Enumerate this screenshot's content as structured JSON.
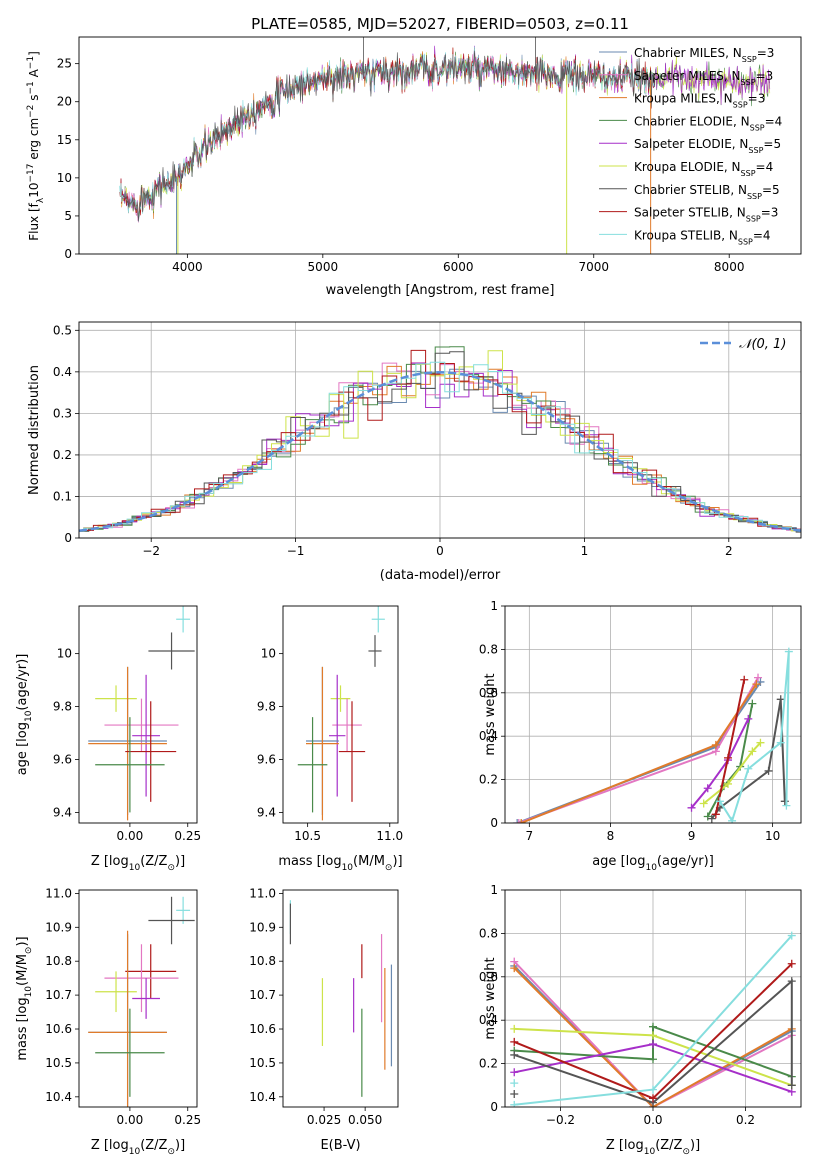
{
  "title": "PLATE=0585, MJD=52027, FIBERID=0503, z=0.11",
  "colors": {
    "Chabrier MILES": "#6a8ab0",
    "Salpeter MILES": "#e377c2",
    "Kroupa MILES": "#e07b2a",
    "Chabrier ELODIE": "#4a8a4a",
    "Salpeter ELODIE": "#a62fc9",
    "Kroupa ELODIE": "#cde34a",
    "Chabrier STELIB": "#555555",
    "Salpeter STELIB": "#b01a1a",
    "Kroupa STELIB": "#86dede",
    "gaussian": "#5b8fd9",
    "grid": "#b0b0b0"
  },
  "legend1": [
    {
      "model": "Chabrier MILES",
      "label": "Chabrier MILES, N",
      "sub": "SSP",
      "tail": "=3"
    },
    {
      "model": "Salpeter MILES",
      "label": "Salpeter MILES, N",
      "sub": "SSP",
      "tail": "=3"
    },
    {
      "model": "Kroupa MILES",
      "label": "Kroupa MILES, N",
      "sub": "SSP",
      "tail": "=3"
    },
    {
      "model": "Chabrier ELODIE",
      "label": "Chabrier ELODIE, N",
      "sub": "SSP",
      "tail": "=4"
    },
    {
      "model": "Salpeter ELODIE",
      "label": "Salpeter ELODIE, N",
      "sub": "SSP",
      "tail": "=5"
    },
    {
      "model": "Kroupa ELODIE",
      "label": "Kroupa ELODIE, N",
      "sub": "SSP",
      "tail": "=4"
    },
    {
      "model": "Chabrier STELIB",
      "label": "Chabrier STELIB, N",
      "sub": "SSP",
      "tail": "=5"
    },
    {
      "model": "Salpeter STELIB",
      "label": "Salpeter STELIB, N",
      "sub": "SSP",
      "tail": "=3"
    },
    {
      "model": "Kroupa STELIB",
      "label": "Kroupa STELIB, N",
      "sub": "SSP",
      "tail": "=4"
    }
  ],
  "legend2": {
    "label": "𝒩(0, 1)"
  },
  "chart_data": [
    {
      "id": "spectrum",
      "type": "line",
      "xlabel": "wavelength [Angstrom, rest frame]",
      "ylabel": "Flux [f",
      "ylabel_sub": "λ",
      "ylabel_tail": "10",
      "ylabel_sup": "−17",
      "ylabel_tail2": " erg cm",
      "ylabel_sup2": "−2",
      "ylabel_tail3": " s",
      "ylabel_sup3": "−1",
      "ylabel_tail4": " A",
      "ylabel_sup4": "−1",
      "ylabel_tail5": "]",
      "xlim": [
        3200,
        8530
      ],
      "ylim": [
        0,
        28.5
      ],
      "xticks": [
        4000,
        5000,
        6000,
        7000,
        8000
      ],
      "yticks": [
        0,
        5,
        10,
        15,
        20,
        25
      ],
      "continuum": {
        "x": [
          3500,
          3600,
          3700,
          3800,
          3900,
          4000,
          4100,
          4200,
          4300,
          4400,
          4500,
          4600,
          4700,
          4800,
          4900,
          5000,
          5200,
          5400,
          5600,
          5800,
          6000,
          6200,
          6400,
          6600,
          6800,
          7000,
          7200,
          7400,
          7600,
          7800,
          8000,
          8200,
          8300
        ],
        "y": [
          7.5,
          6.5,
          7.5,
          9.0,
          9.5,
          11.5,
          13.5,
          15.0,
          16.5,
          18.0,
          19.0,
          20.0,
          21.0,
          22.0,
          22.5,
          23.0,
          23.5,
          23.8,
          24.0,
          24.3,
          24.5,
          24.0,
          23.8,
          23.5,
          23.5,
          23.3,
          23.0,
          23.0,
          23.2,
          23.0,
          22.8,
          22.5,
          22.3
        ]
      },
      "dropouts": [
        {
          "model": "Chabrier MILES",
          "x": 3920
        },
        {
          "model": "Kroupa ELODIE",
          "x": 3930
        },
        {
          "model": "Kroupa ELODIE",
          "x": 6800
        },
        {
          "model": "Kroupa MILES",
          "x": 7420
        }
      ]
    },
    {
      "id": "residuals",
      "type": "histogram",
      "xlabel": "(data-model)/error",
      "ylabel": "Normed distribution",
      "xlim": [
        -2.5,
        2.5
      ],
      "ylim": [
        0,
        0.52
      ],
      "xticks": [
        -2,
        -1,
        0,
        1,
        2
      ],
      "yticks": [
        0.0,
        0.1,
        0.2,
        0.3,
        0.4,
        0.5
      ],
      "bin_width": 0.1
    },
    {
      "id": "age_vs_Z",
      "type": "errorbar",
      "xlabel": "Z [log",
      "xlabel_sub": "10",
      "xlabel_tail": "(Z/Z",
      "xlabel_sub2": "⊙",
      "xlabel_tail2": ")]",
      "ylabel": "age  [log",
      "ylabel_sub": "10",
      "ylabel_tail": "(age/yr)]",
      "xlim": [
        -0.22,
        0.29
      ],
      "ylim": [
        9.36,
        10.18
      ],
      "xticks": [
        0.0,
        0.25
      ],
      "xticklabels": [
        "0.00",
        "0.25"
      ],
      "yticks": [
        9.4,
        9.6,
        9.8,
        10.0
      ],
      "points": [
        {
          "model": "Kroupa STELIB",
          "x": 0.23,
          "y": 10.13,
          "xerr": 0.03,
          "yerr": 0.05
        },
        {
          "model": "Chabrier STELIB",
          "x": 0.18,
          "y": 10.01,
          "xerr": 0.1,
          "yerr": 0.07
        },
        {
          "model": "Kroupa ELODIE",
          "x": -0.06,
          "y": 9.83,
          "xerr": 0.09,
          "yerr": 0.05
        },
        {
          "model": "Salpeter MILES",
          "x": 0.05,
          "y": 9.73,
          "xerr": 0.16,
          "yerr": 0.1
        },
        {
          "model": "Salpeter ELODIE",
          "x": 0.07,
          "y": 9.69,
          "xerr": 0.06,
          "yerr": 0.23
        },
        {
          "model": "Chabrier MILES",
          "x": -0.01,
          "y": 9.67,
          "xerr": 0.17,
          "yerr": 0.28
        },
        {
          "model": "Kroupa MILES",
          "x": -0.01,
          "y": 9.66,
          "xerr": 0.17,
          "yerr": 0.29
        },
        {
          "model": "Salpeter STELIB",
          "x": 0.09,
          "y": 9.63,
          "xerr": 0.11,
          "yerr": 0.19
        },
        {
          "model": "Chabrier ELODIE",
          "x": 0.0,
          "y": 9.58,
          "xerr": 0.15,
          "yerr": 0.18
        }
      ]
    },
    {
      "id": "age_vs_mass",
      "type": "errorbar",
      "xlabel": "mass [log",
      "xlabel_sub": "10",
      "xlabel_tail": "(M/M",
      "xlabel_sub2": "⊙",
      "xlabel_tail2": ")]",
      "ylabel": "",
      "xlim": [
        10.35,
        11.05
      ],
      "ylim": [
        9.36,
        10.18
      ],
      "xticks": [
        10.5,
        11.0
      ],
      "xticklabels": [
        "10.5",
        "11.0"
      ],
      "yticks": [
        9.4,
        9.6,
        9.8,
        10.0
      ],
      "points": [
        {
          "model": "Kroupa STELIB",
          "x": 10.93,
          "y": 10.13,
          "xerr": 0.04,
          "yerr": 0.05
        },
        {
          "model": "Chabrier STELIB",
          "x": 10.91,
          "y": 10.01,
          "xerr": 0.04,
          "yerr": 0.06
        },
        {
          "model": "Kroupa ELODIE",
          "x": 10.7,
          "y": 9.83,
          "xerr": 0.06,
          "yerr": 0.05
        },
        {
          "model": "Salpeter MILES",
          "x": 10.74,
          "y": 9.73,
          "xerr": 0.09,
          "yerr": 0.1
        },
        {
          "model": "Salpeter ELODIE",
          "x": 10.68,
          "y": 9.69,
          "xerr": 0.05,
          "yerr": 0.23
        },
        {
          "model": "Chabrier MILES",
          "x": 10.59,
          "y": 9.67,
          "xerr": 0.1,
          "yerr": 0.28
        },
        {
          "model": "Kroupa MILES",
          "x": 10.59,
          "y": 9.66,
          "xerr": 0.1,
          "yerr": 0.29
        },
        {
          "model": "Salpeter STELIB",
          "x": 10.77,
          "y": 9.63,
          "xerr": 0.08,
          "yerr": 0.19
        },
        {
          "model": "Chabrier ELODIE",
          "x": 10.53,
          "y": 9.58,
          "xerr": 0.09,
          "yerr": 0.18
        }
      ]
    },
    {
      "id": "mass_vs_Z",
      "type": "errorbar",
      "xlabel": "Z [log",
      "xlabel_sub": "10",
      "xlabel_tail": "(Z/Z",
      "xlabel_sub2": "⊙",
      "xlabel_tail2": ")]",
      "ylabel": "mass [log",
      "ylabel_sub": "10",
      "ylabel_tail": "(M/M",
      "ylabel_sub2": "⊙",
      "ylabel_tail2": ")]",
      "xlim": [
        -0.22,
        0.29
      ],
      "ylim": [
        10.37,
        11.01
      ],
      "xticks": [
        0.0,
        0.25
      ],
      "xticklabels": [
        "0.00",
        "0.25"
      ],
      "yticks": [
        10.4,
        10.5,
        10.6,
        10.7,
        10.8,
        10.9,
        11.0
      ],
      "yticklabels": [
        "10.4",
        "10.5",
        "10.6",
        "10.7",
        "10.8",
        "10.9",
        "11.0"
      ],
      "points": [
        {
          "model": "Kroupa STELIB",
          "x": 0.23,
          "y": 10.95,
          "xerr": 0.03,
          "yerr": 0.04
        },
        {
          "model": "Chabrier STELIB",
          "x": 0.18,
          "y": 10.92,
          "xerr": 0.1,
          "yerr": 0.07
        },
        {
          "model": "Salpeter STELIB",
          "x": 0.09,
          "y": 10.77,
          "xerr": 0.11,
          "yerr": 0.08
        },
        {
          "model": "Salpeter MILES",
          "x": 0.05,
          "y": 10.75,
          "xerr": 0.16,
          "yerr": 0.1
        },
        {
          "model": "Kroupa ELODIE",
          "x": -0.06,
          "y": 10.71,
          "xerr": 0.09,
          "yerr": 0.06
        },
        {
          "model": "Salpeter ELODIE",
          "x": 0.07,
          "y": 10.69,
          "xerr": 0.06,
          "yerr": 0.06
        },
        {
          "model": "Chabrier MILES",
          "x": -0.01,
          "y": 10.59,
          "xerr": 0.17,
          "yerr": 0.29
        },
        {
          "model": "Kroupa MILES",
          "x": -0.01,
          "y": 10.59,
          "xerr": 0.17,
          "yerr": 0.3
        },
        {
          "model": "Chabrier ELODIE",
          "x": 0.0,
          "y": 10.53,
          "xerr": 0.15,
          "yerr": 0.13
        }
      ]
    },
    {
      "id": "mass_vs_EBV",
      "type": "errorbar",
      "xlabel": "E(B-V)",
      "ylabel": "",
      "xlim": [
        0.0,
        0.07
      ],
      "ylim": [
        10.37,
        11.01
      ],
      "xticks": [
        0.025,
        0.05
      ],
      "xticklabels": [
        "0.025",
        "0.050"
      ],
      "yticks": [
        10.4,
        10.5,
        10.6,
        10.7,
        10.8,
        10.9,
        11.0
      ],
      "yticklabels": [
        "10.4",
        "10.5",
        "10.6",
        "10.7",
        "10.8",
        "10.9",
        "11.0"
      ],
      "points": [
        {
          "model": "Kroupa STELIB",
          "x": 0.0045,
          "y": 10.93,
          "xerr": 0.0,
          "yerr": 0.05
        },
        {
          "model": "Chabrier STELIB",
          "x": 0.0045,
          "y": 10.91,
          "xerr": 0.0,
          "yerr": 0.06
        },
        {
          "model": "Kroupa ELODIE",
          "x": 0.024,
          "y": 10.65,
          "xerr": 0.0,
          "yerr": 0.1
        },
        {
          "model": "Salpeter ELODIE",
          "x": 0.043,
          "y": 10.67,
          "xerr": 0.0,
          "yerr": 0.08
        },
        {
          "model": "Chabrier ELODIE",
          "x": 0.048,
          "y": 10.53,
          "xerr": 0.0,
          "yerr": 0.13
        },
        {
          "model": "Salpeter STELIB",
          "x": 0.048,
          "y": 10.8,
          "xerr": 0.0,
          "yerr": 0.05
        },
        {
          "model": "Salpeter MILES",
          "x": 0.06,
          "y": 10.75,
          "xerr": 0.0,
          "yerr": 0.13
        },
        {
          "model": "Kroupa MILES",
          "x": 0.062,
          "y": 10.63,
          "xerr": 0.0,
          "yerr": 0.15
        },
        {
          "model": "Chabrier MILES",
          "x": 0.066,
          "y": 10.64,
          "xerr": 0.0,
          "yerr": 0.15
        }
      ]
    },
    {
      "id": "weight_vs_age",
      "type": "line",
      "xlabel": "age  [log",
      "xlabel_sub": "10",
      "xlabel_tail": "(age/yr)]",
      "ylabel": "mass weight",
      "xlim": [
        6.7,
        10.35
      ],
      "ylim": [
        0,
        1.0
      ],
      "xticks": [
        7,
        8,
        9,
        10
      ],
      "yticks": [
        0.0,
        0.2,
        0.4,
        0.6,
        0.8,
        1.0
      ],
      "series": [
        {
          "model": "Chabrier MILES",
          "x": [
            6.85,
            9.3,
            9.85
          ],
          "y": [
            0.0,
            0.35,
            0.65
          ]
        },
        {
          "model": "Salpeter MILES",
          "x": [
            6.87,
            9.3,
            9.82
          ],
          "y": [
            0.0,
            0.33,
            0.67
          ]
        },
        {
          "model": "Kroupa MILES",
          "x": [
            6.9,
            9.3,
            9.8
          ],
          "y": [
            0.0,
            0.36,
            0.64
          ]
        },
        {
          "model": "Chabrier ELODIE",
          "x": [
            9.2,
            9.4,
            9.6,
            9.75
          ],
          "y": [
            0.03,
            0.17,
            0.26,
            0.55
          ]
        },
        {
          "model": "Salpeter ELODIE",
          "x": [
            9.0,
            9.2,
            9.45,
            9.7
          ],
          "y": [
            0.07,
            0.16,
            0.29,
            0.48
          ]
        },
        {
          "model": "Kroupa ELODIE",
          "x": [
            9.15,
            9.45,
            9.75,
            9.85
          ],
          "y": [
            0.09,
            0.18,
            0.33,
            0.37
          ]
        },
        {
          "model": "Chabrier STELIB",
          "x": [
            9.25,
            9.35,
            9.95,
            10.1,
            10.15
          ],
          "y": [
            0.02,
            0.07,
            0.24,
            0.57,
            0.1
          ]
        },
        {
          "model": "Salpeter STELIB",
          "x": [
            9.3,
            9.45,
            9.65
          ],
          "y": [
            0.04,
            0.3,
            0.66
          ]
        },
        {
          "model": "Kroupa STELIB",
          "x": [
            9.35,
            9.5,
            9.7,
            10.1,
            10.2,
            10.17
          ],
          "y": [
            0.1,
            0.01,
            0.25,
            0.37,
            0.79,
            0.08
          ]
        }
      ]
    },
    {
      "id": "weight_vs_Z",
      "type": "line",
      "xlabel": "Z [log",
      "xlabel_sub": "10",
      "xlabel_tail": "(Z/Z",
      "xlabel_sub2": "⊙",
      "xlabel_tail2": ")]",
      "ylabel": "mass weight",
      "xlim": [
        -0.32,
        0.32
      ],
      "ylim": [
        0,
        1.0
      ],
      "xticks": [
        -0.2,
        0.0,
        0.2
      ],
      "xticklabels": [
        "−0.2",
        "0.0",
        "0.2"
      ],
      "yticks": [
        0.0,
        0.2,
        0.4,
        0.6,
        0.8,
        1.0
      ],
      "series": [
        {
          "model": "Chabrier MILES",
          "x": [
            -0.3,
            0.0,
            0.3
          ],
          "y": [
            0.65,
            0.0,
            0.35
          ]
        },
        {
          "model": "Salpeter MILES",
          "x": [
            -0.3,
            0.0,
            0.3
          ],
          "y": [
            0.67,
            0.0,
            0.33
          ]
        },
        {
          "model": "Kroupa MILES",
          "x": [
            -0.3,
            0.0,
            0.3
          ],
          "y": [
            0.64,
            0.0,
            0.36
          ]
        },
        {
          "model": "Chabrier ELODIE",
          "x": [
            -0.3,
            0.0,
            0.0,
            0.3
          ],
          "y": [
            0.26,
            0.22,
            0.37,
            0.14
          ]
        },
        {
          "model": "Salpeter ELODIE",
          "x": [
            -0.3,
            0.0,
            0.3
          ],
          "y": [
            0.16,
            0.29,
            0.07
          ]
        },
        {
          "model": "Kroupa ELODIE",
          "x": [
            -0.3,
            0.0,
            0.3
          ],
          "y": [
            0.36,
            0.33,
            0.1
          ]
        },
        {
          "model": "Chabrier STELIB",
          "x": [
            -0.3,
            0.0,
            0.3,
            0.3
          ],
          "y": [
            0.24,
            0.02,
            0.58,
            0.1
          ]
        },
        {
          "model": "Salpeter STELIB",
          "x": [
            -0.3,
            0.0,
            0.3
          ],
          "y": [
            0.3,
            0.04,
            0.66
          ]
        },
        {
          "model": "Kroupa STELIB",
          "x": [
            -0.3,
            0.0,
            0.3
          ],
          "y": [
            0.01,
            0.08,
            0.79
          ]
        }
      ],
      "extra_markers": [
        {
          "model": "Kroupa STELIB",
          "x": -0.3,
          "y": 0.11
        },
        {
          "model": "Chabrier STELIB",
          "x": -0.3,
          "y": 0.06
        }
      ]
    }
  ]
}
